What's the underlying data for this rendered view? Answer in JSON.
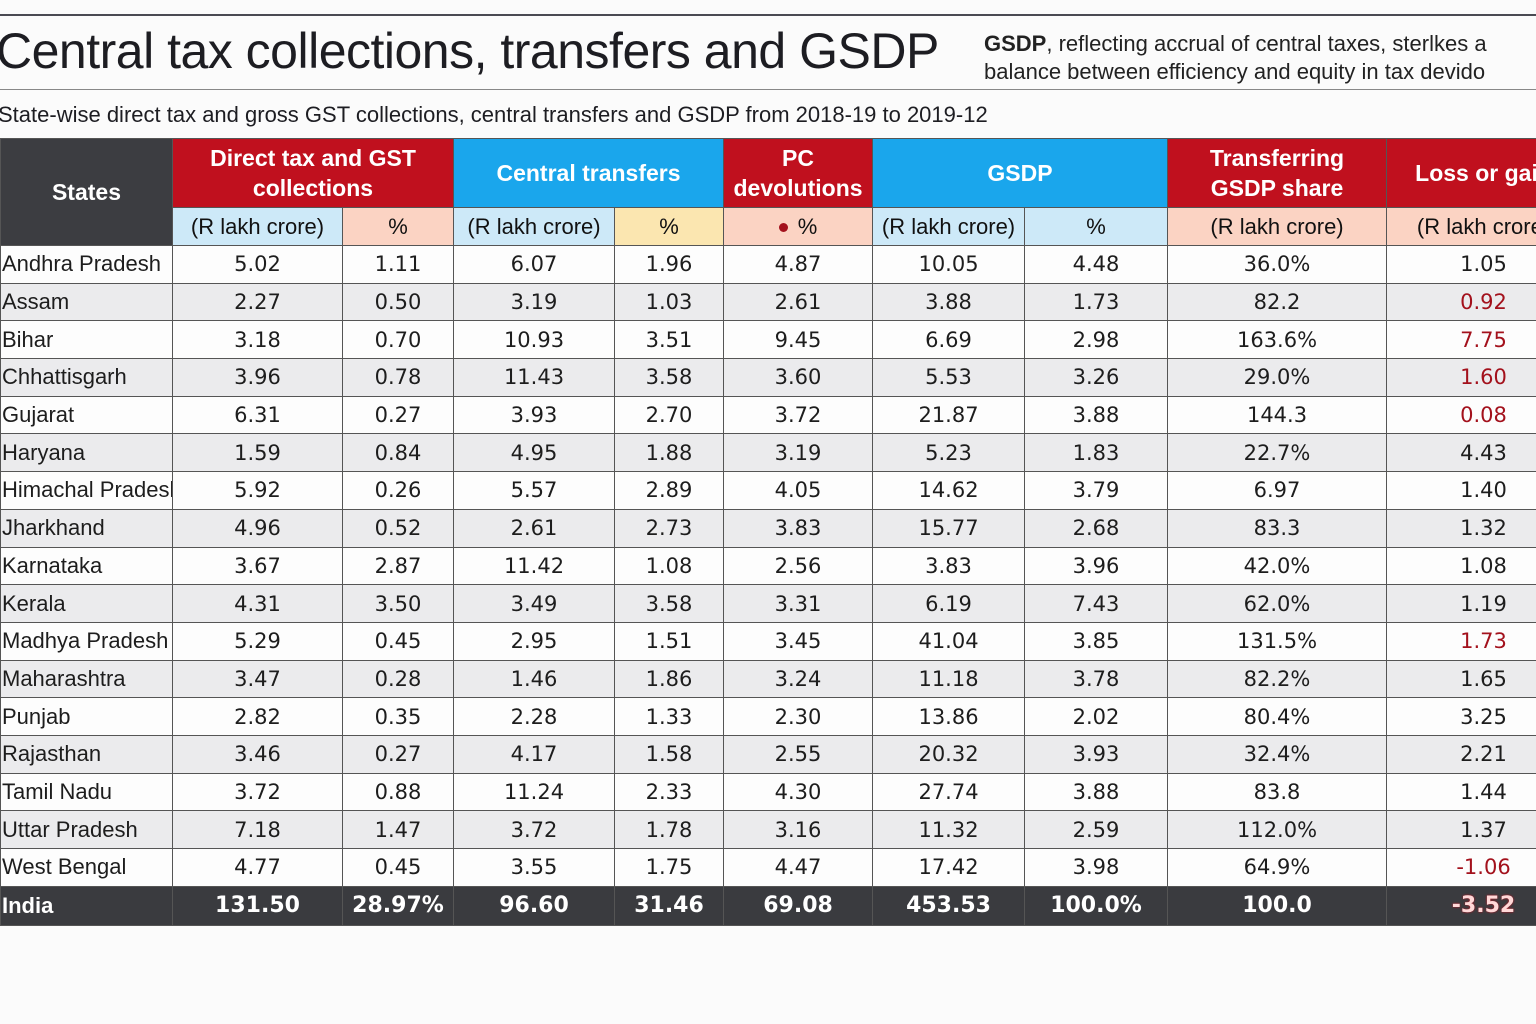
{
  "header": {
    "title": "Central tax collections, transfers and GSDP",
    "note_bold": "GSDP",
    "note_line1": ", reflecting accrual of central taxes, sterlkes a",
    "note_line2": "balance between efficiency and equity in tax devido",
    "subtitle": "State-wise direct tax and gross GST collections, central transfers and GSDP from 2018-19 to 2019-12"
  },
  "colors": {
    "red": "#c0101e",
    "blue": "#1aa6ec",
    "dark": "#3c3d41",
    "negative": "#a3111c"
  },
  "table": {
    "groups": {
      "states": "States",
      "direct_tax_l1": "Direct tax and GST",
      "direct_tax_l2": "collections",
      "central_transfers": "Central transfers",
      "pc_l1": "PC",
      "pc_l2": "devolutions",
      "gsdp": "GSDP",
      "transferring_l1": "Transferring",
      "transferring_l2": "GSDP share",
      "loss_gain": "Loss or gain"
    },
    "subheaders": [
      "(R lakh crore)",
      "%",
      "(R lakh crore)",
      "%",
      "%",
      "(R lakh crore)",
      "%",
      "(R lakh crore)",
      "(R lakh crore)"
    ],
    "rows": [
      {
        "state": "Andhra Pradesh",
        "values": [
          "5.02",
          "1.11",
          "6.07",
          "1.96",
          "4.87",
          "10.05",
          "4.48",
          "36.0%",
          "1.05"
        ],
        "negative": false
      },
      {
        "state": "Assam",
        "values": [
          "2.27",
          "0.50",
          "3.19",
          "1.03",
          "2.61",
          "3.88",
          "1.73",
          "82.2",
          "0.92"
        ],
        "negative": true
      },
      {
        "state": "Bihar",
        "values": [
          "3.18",
          "0.70",
          "10.93",
          "3.51",
          "9.45",
          "6.69",
          "2.98",
          "163.6%",
          "7.75"
        ],
        "negative": true
      },
      {
        "state": "Chhattisgarh",
        "values": [
          "3.96",
          "0.78",
          "11.43",
          "3.58",
          "3.60",
          "5.53",
          "3.26",
          "29.0%",
          "1.60"
        ],
        "negative": true
      },
      {
        "state": "Gujarat",
        "values": [
          "6.31",
          "0.27",
          "3.93",
          "2.70",
          "3.72",
          "21.87",
          "3.88",
          "144.3",
          "0.08"
        ],
        "negative": true
      },
      {
        "state": "Haryana",
        "values": [
          "1.59",
          "0.84",
          "4.95",
          "1.88",
          "3.19",
          "5.23",
          "1.83",
          "22.7%",
          "4.43"
        ],
        "negative": false
      },
      {
        "state": "Himachal Pradesh",
        "values": [
          "5.92",
          "0.26",
          "5.57",
          "2.89",
          "4.05",
          "14.62",
          "3.79",
          "6.97",
          "1.40"
        ],
        "negative": false
      },
      {
        "state": "Jharkhand",
        "values": [
          "4.96",
          "0.52",
          "2.61",
          "2.73",
          "3.83",
          "15.77",
          "2.68",
          "83.3",
          "1.32"
        ],
        "negative": false
      },
      {
        "state": "Karnataka",
        "values": [
          "3.67",
          "2.87",
          "11.42",
          "1.08",
          "2.56",
          "3.83",
          "3.96",
          "42.0%",
          "1.08"
        ],
        "negative": false
      },
      {
        "state": "Kerala",
        "values": [
          "4.31",
          "3.50",
          "3.49",
          "3.58",
          "3.31",
          "6.19",
          "7.43",
          "62.0%",
          "1.19"
        ],
        "negative": false
      },
      {
        "state": "Madhya Pradesh",
        "values": [
          "5.29",
          "0.45",
          "2.95",
          "1.51",
          "3.45",
          "41.04",
          "3.85",
          "131.5%",
          "1.73"
        ],
        "negative": true
      },
      {
        "state": "Maharashtra",
        "values": [
          "3.47",
          "0.28",
          "1.46",
          "1.86",
          "3.24",
          "11.18",
          "3.78",
          "82.2%",
          "1.65"
        ],
        "negative": false
      },
      {
        "state": "Punjab",
        "values": [
          "2.82",
          "0.35",
          "2.28",
          "1.33",
          "2.30",
          "13.86",
          "2.02",
          "80.4%",
          "3.25"
        ],
        "negative": false
      },
      {
        "state": "Rajasthan",
        "values": [
          "3.46",
          "0.27",
          "4.17",
          "1.58",
          "2.55",
          "20.32",
          "3.93",
          "32.4%",
          "2.21"
        ],
        "negative": false
      },
      {
        "state": "Tamil Nadu",
        "values": [
          "3.72",
          "0.88",
          "11.24",
          "2.33",
          "4.30",
          "27.74",
          "3.88",
          "83.8",
          "1.44"
        ],
        "negative": false
      },
      {
        "state": "Uttar Pradesh",
        "values": [
          "7.18",
          "1.47",
          "3.72",
          "1.78",
          "3.16",
          "11.32",
          "2.59",
          "112.0%",
          "1.37"
        ],
        "negative": false
      },
      {
        "state": "West Bengal",
        "values": [
          "4.77",
          "0.45",
          "3.55",
          "1.75",
          "4.47",
          "17.42",
          "3.98",
          "64.9%",
          "-1.06"
        ],
        "negative": true
      }
    ],
    "total": {
      "state": "India",
      "values": [
        "131.50",
        "28.97%",
        "96.60",
        "31.46",
        "69.08",
        "453.53",
        "100.0%",
        "100.0",
        "-3.52"
      ],
      "negative": true
    }
  }
}
